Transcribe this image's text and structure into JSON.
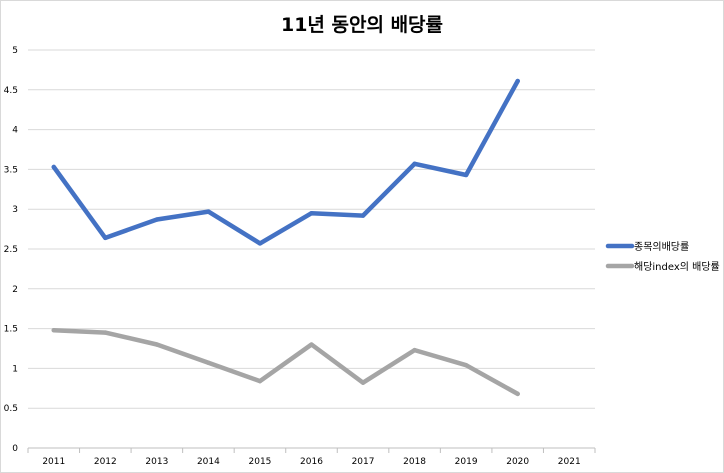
{
  "chart_data": {
    "type": "line",
    "title": "11년 동안의 배당률",
    "xlabel": "",
    "ylabel": "",
    "categories": [
      "2011",
      "2012",
      "2013",
      "2014",
      "2015",
      "2016",
      "2017",
      "2018",
      "2019",
      "2020",
      "2021"
    ],
    "ylim": [
      0,
      5
    ],
    "yticks": [
      "0",
      "0.5",
      "1",
      "1.5",
      "2",
      "2.5",
      "3",
      "3.5",
      "4",
      "4.5",
      "5"
    ],
    "grid": true,
    "legend_position": "right",
    "series": [
      {
        "name": "종목의배당률",
        "color": "#4472C4",
        "values": [
          3.53,
          2.64,
          2.87,
          2.97,
          2.57,
          2.95,
          2.92,
          3.57,
          3.43,
          4.61,
          null
        ]
      },
      {
        "name": "해당index의 배당률",
        "color": "#A5A5A5",
        "values": [
          1.48,
          1.45,
          1.3,
          1.07,
          0.84,
          1.3,
          0.82,
          1.23,
          1.04,
          0.68,
          null
        ]
      }
    ]
  }
}
